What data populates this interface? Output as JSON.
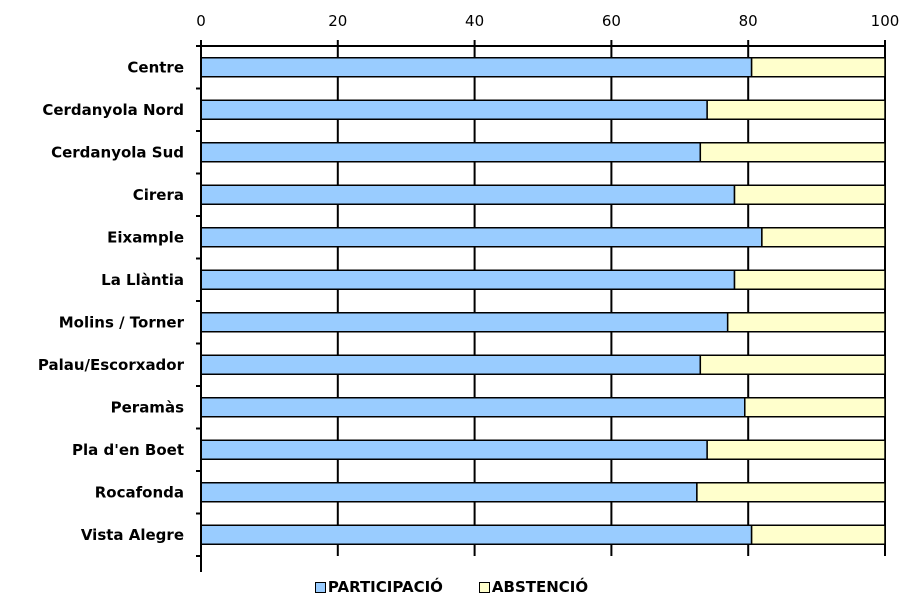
{
  "chart_data": {
    "type": "bar",
    "orientation": "horizontal",
    "stacked": true,
    "categories": [
      "Centre",
      "Cerdanyola Nord",
      "Cerdanyola Sud",
      "Cirera",
      "Eixample",
      "La Llàntia",
      "Molins / Torner",
      "Palau/Escorxador",
      "Peramàs",
      "Pla d'en Boet",
      "Rocafonda",
      "Vista Alegre"
    ],
    "series": [
      {
        "name": "PARTICIPACIÓ",
        "color": "#99ccff",
        "values": [
          80.5,
          74,
          73,
          78,
          82,
          78,
          77,
          73,
          79.5,
          74,
          72.5,
          80.5
        ]
      },
      {
        "name": "ABSTENCIÓ",
        "color": "#ffffcc",
        "values": [
          19.5,
          26,
          27,
          22,
          18,
          22,
          23,
          27,
          20.5,
          26,
          27.5,
          19.5
        ]
      }
    ],
    "xlim": [
      0,
      100
    ],
    "xticks": [
      0,
      20,
      40,
      60,
      80,
      100
    ],
    "x_axis_position": "top",
    "grid": true,
    "legend_position": "bottom"
  }
}
